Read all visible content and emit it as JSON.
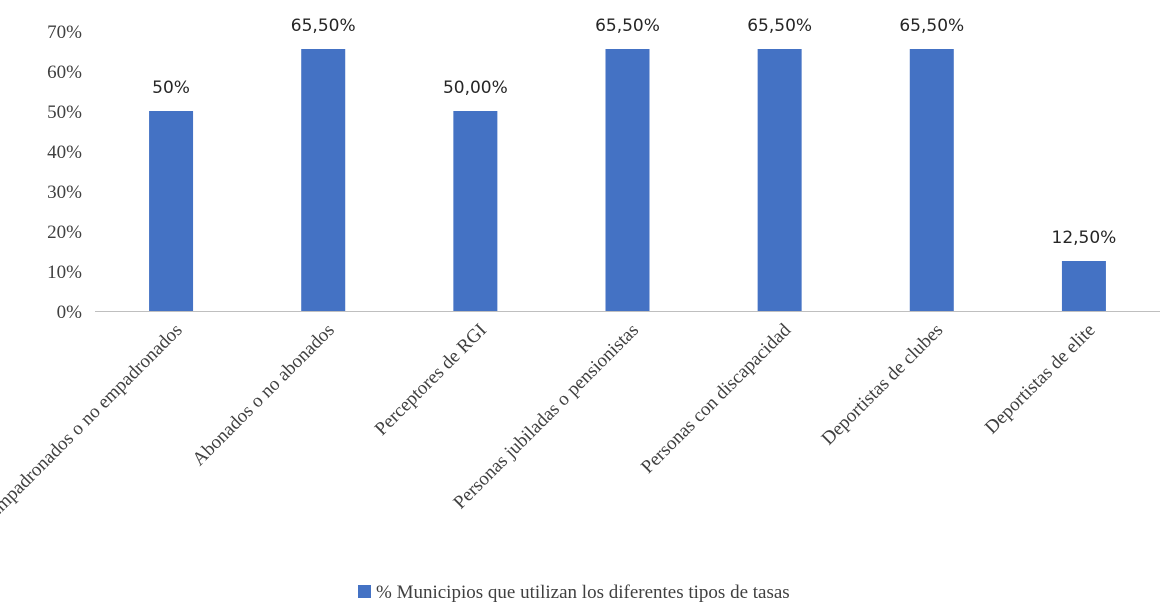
{
  "chart_data": {
    "type": "bar",
    "categories": [
      "Empadronados o no empadronados",
      "Abonados o no abonados",
      "Perceptores de RGI",
      "Personas jubiladas o pensionistas",
      "Personas con discapacidad",
      "Deportistas de clubes",
      "Deportistas de elite"
    ],
    "series": [
      {
        "name": "% Municipios que utilizan los diferentes tipos de tasas",
        "values": [
          50,
          65.5,
          50,
          65.5,
          65.5,
          65.5,
          12.5
        ],
        "data_labels": [
          "50%",
          "65,50%",
          "50,00%",
          "65,50%",
          "65,50%",
          "65,50%",
          "12,50%"
        ],
        "color": "#4472C4"
      }
    ],
    "ylim": [
      0,
      70
    ],
    "yticks": [
      0,
      10,
      20,
      30,
      40,
      50,
      60,
      70
    ],
    "ytick_labels": [
      "0%",
      "10%",
      "20%",
      "30%",
      "40%",
      "50%",
      "60%",
      "70%"
    ],
    "grid": false,
    "legend_position": "bottom",
    "title": "",
    "xlabel": "",
    "ylabel": ""
  }
}
